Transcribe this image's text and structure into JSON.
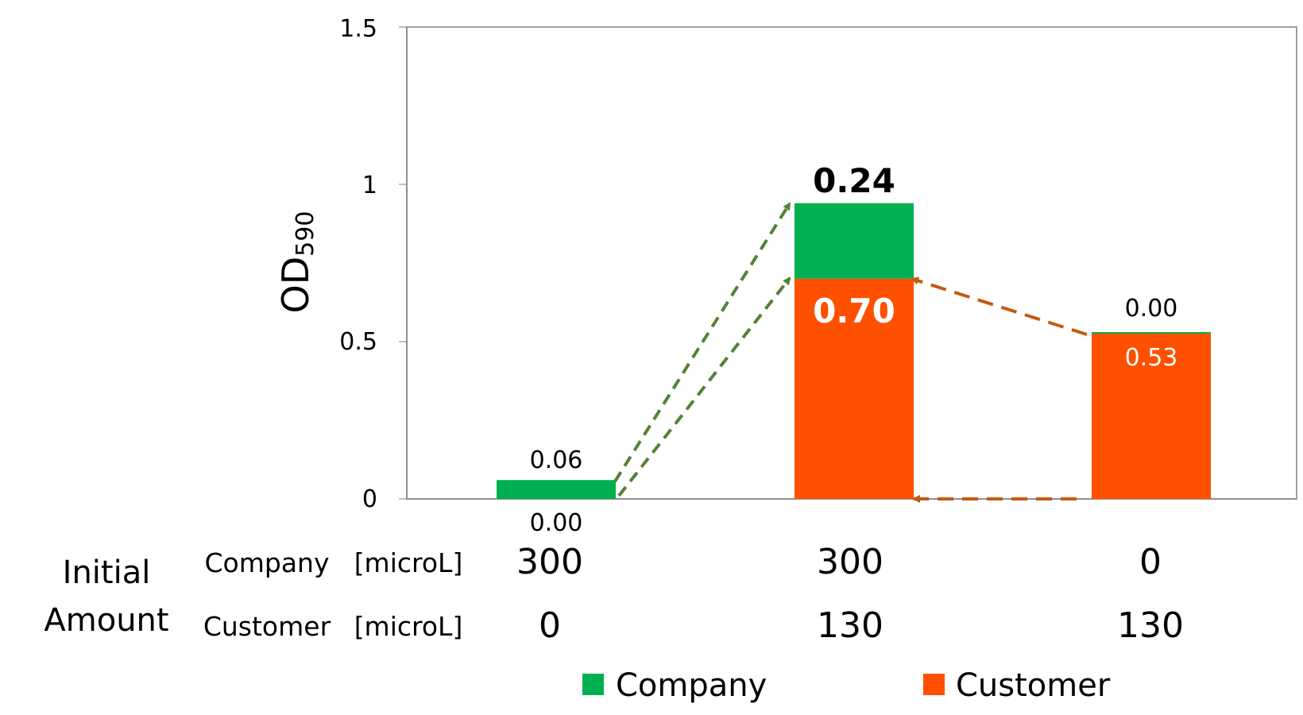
{
  "chart_data": {
    "type": "bar",
    "stacked": true,
    "ylabel_main": "OD",
    "ylabel_sub": "590",
    "ylim": [
      0,
      1.5
    ],
    "yticks": [
      "0",
      "0.5",
      "1",
      "1.5"
    ],
    "grid": false,
    "legend_position": "bottom",
    "series": [
      {
        "name": "Customer",
        "color": "#ff5000",
        "values": [
          0.0,
          0.7,
          0.53
        ],
        "labels": [
          "0.00",
          "0.70",
          "0.53"
        ]
      },
      {
        "name": "Company",
        "color": "#00b050",
        "values": [
          0.06,
          0.24,
          0.0
        ],
        "labels": [
          "0.06",
          "0.24",
          "0.00"
        ]
      }
    ],
    "arrows": {
      "company_color": "#548235",
      "customer_color": "#c55a11"
    }
  },
  "table": {
    "header_line1": "Initial",
    "header_line2": "Amount",
    "rows": [
      {
        "name": "Company",
        "unit": "[microL]",
        "values": [
          "300",
          "300",
          "0"
        ]
      },
      {
        "name": "Customer",
        "unit": "[microL]",
        "values": [
          "0",
          "130",
          "130"
        ]
      }
    ]
  }
}
